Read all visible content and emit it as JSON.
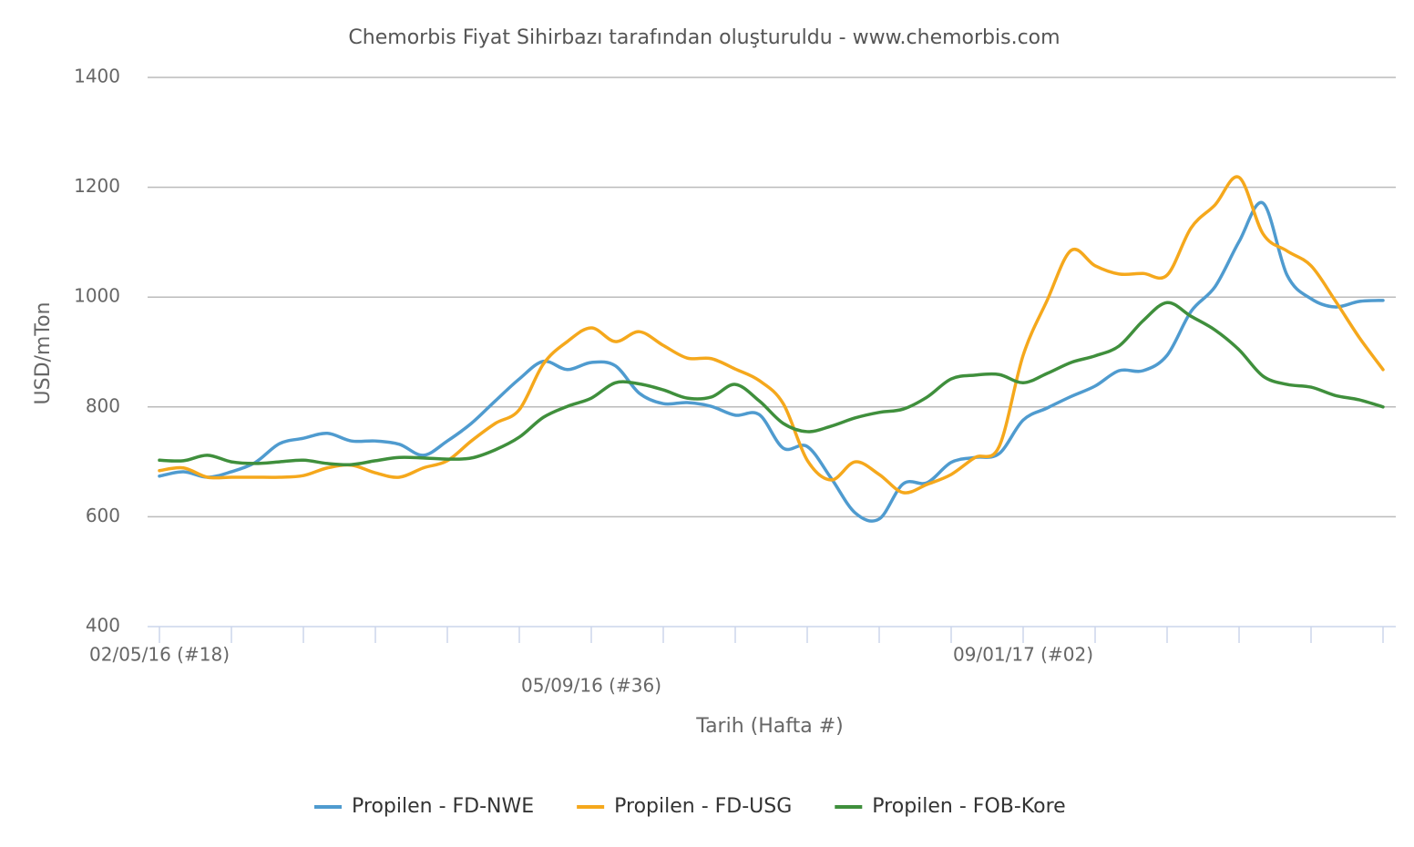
{
  "chart_data": {
    "type": "line",
    "title": "Chemorbis Fiyat Sihirbazı tarafından oluşturuldu - www.chemorbis.com",
    "x_label": "Tarih (Hafta #)",
    "y_label": "USD/mTon",
    "categories": [
      "02/05/16 (#18)",
      null,
      null,
      null,
      null,
      null,
      null,
      null,
      null,
      null,
      null,
      null,
      null,
      null,
      null,
      null,
      null,
      null,
      "05/09/16 (#36)",
      null,
      null,
      null,
      null,
      null,
      null,
      null,
      null,
      null,
      null,
      null,
      null,
      null,
      null,
      null,
      null,
      null,
      "09/01/17 (#02)",
      null,
      null,
      null,
      null,
      null,
      null,
      null,
      null,
      null,
      null,
      null,
      null,
      null,
      null,
      null
    ],
    "ylim": [
      400,
      1400
    ],
    "yticks": [
      400,
      600,
      800,
      1000,
      1200,
      1400
    ],
    "grid": true,
    "legend": "bottom",
    "series": [
      {
        "name": "Propilen - FD-NWE",
        "color": "#4f9bcf",
        "values": [
          674,
          682,
          672,
          682,
          699,
          733,
          743,
          752,
          738,
          738,
          732,
          712,
          738,
          770,
          811,
          851,
          883,
          868,
          881,
          875,
          825,
          806,
          808,
          801,
          785,
          786,
          725,
          728,
          670,
          607,
          596,
          660,
          662,
          699,
          708,
          715,
          776,
          798,
          819,
          838,
          866,
          866,
          894,
          974,
          1019,
          1101,
          1171,
          1040,
          997,
          982,
          992,
          994
        ]
      },
      {
        "name": "Propilen - FD-USG",
        "color": "#f5a81c",
        "values": [
          684,
          689,
          672,
          672,
          672,
          672,
          675,
          689,
          694,
          680,
          672,
          689,
          702,
          738,
          770,
          795,
          878,
          919,
          944,
          919,
          937,
          912,
          889,
          888,
          869,
          848,
          806,
          703,
          667,
          700,
          677,
          644,
          659,
          677,
          708,
          728,
          894,
          994,
          1085,
          1057,
          1042,
          1043,
          1040,
          1126,
          1168,
          1218,
          1115,
          1084,
          1057,
          994,
          927,
          868
        ]
      },
      {
        "name": "Propilen - FOB-Kore",
        "color": "#3f8f3c",
        "values": [
          703,
          702,
          712,
          700,
          697,
          700,
          703,
          697,
          695,
          702,
          708,
          707,
          705,
          707,
          722,
          745,
          781,
          801,
          816,
          844,
          842,
          831,
          816,
          818,
          841,
          811,
          770,
          755,
          765,
          780,
          790,
          796,
          818,
          851,
          858,
          859,
          844,
          861,
          881,
          893,
          911,
          957,
          990,
          965,
          940,
          904,
          856,
          841,
          836,
          821,
          813,
          800
        ]
      }
    ]
  }
}
